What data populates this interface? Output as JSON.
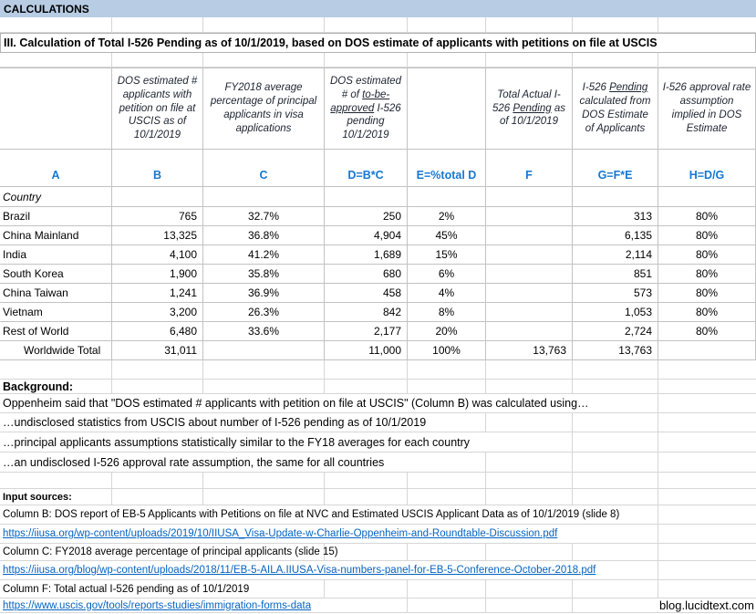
{
  "banner": {
    "label": "CALCULATIONS"
  },
  "title": "III. Calculation of Total I-526 Pending as of 10/1/2019, based on DOS estimate of applicants with petitions on file at USCIS",
  "table": {
    "col_headers": {
      "b": "DOS estimated # applicants with petition on file at USCIS as of 10/1/2019",
      "c": "FY2018 average percentage of principal applicants in visa applications",
      "d": {
        "pre": "DOS estimated # of ",
        "u": "to-be-approved",
        "post": " I-526 pending 10/1/2019"
      },
      "f": {
        "pre": "Total Actual I-526 ",
        "u": "Pending",
        "post": " as of 10/1/2019"
      },
      "g": {
        "pre": "I-526 ",
        "u": "Pending",
        "post": " calculated from DOS Estimate of Applicants"
      },
      "h": "I-526 approval rate assumption implied in DOS Estimate"
    },
    "col_letters": [
      "A",
      "B",
      "C",
      "D=B*C",
      "E=%total D",
      "F",
      "G=F*E",
      "H=D/G"
    ],
    "row_label_header": "Country",
    "rows": [
      {
        "country": "Brazil",
        "b": "765",
        "c": "32.7%",
        "d": "250",
        "e": "2%",
        "f": "",
        "g": "313",
        "h": "80%"
      },
      {
        "country": "China Mainland",
        "b": "13,325",
        "c": "36.8%",
        "d": "4,904",
        "e": "45%",
        "f": "",
        "g": "6,135",
        "h": "80%"
      },
      {
        "country": "India",
        "b": "4,100",
        "c": "41.2%",
        "d": "1,689",
        "e": "15%",
        "f": "",
        "g": "2,114",
        "h": "80%"
      },
      {
        "country": "South Korea",
        "b": "1,900",
        "c": "35.8%",
        "d": "680",
        "e": "6%",
        "f": "",
        "g": "851",
        "h": "80%"
      },
      {
        "country": "China Taiwan",
        "b": "1,241",
        "c": "36.9%",
        "d": "458",
        "e": "4%",
        "f": "",
        "g": "573",
        "h": "80%"
      },
      {
        "country": "Vietnam",
        "b": "3,200",
        "c": "26.3%",
        "d": "842",
        "e": "8%",
        "f": "",
        "g": "1,053",
        "h": "80%"
      },
      {
        "country": "Rest of World",
        "b": "6,480",
        "c": "33.6%",
        "d": "2,177",
        "e": "20%",
        "f": "",
        "g": "2,724",
        "h": "80%"
      },
      {
        "country": "Worldwide Total",
        "b": "31,011",
        "c": "",
        "d": "11,000",
        "e": "100%",
        "f": "13,763",
        "g": "13,763",
        "h": ""
      }
    ]
  },
  "background": {
    "label": "Background:",
    "line1": "Oppenheim said that \"DOS estimated # applicants with petition on file at USCIS\" (Column B) was calculated using…",
    "line2": "…undisclosed statistics from USCIS about number of I-526 pending as of 10/1/2019",
    "line3": "…principal applicants assumptions statistically similar to the FY18 averages for each country",
    "line4": "…an undisclosed I-526 approval rate assumption, the same for all countries"
  },
  "sources": {
    "label": "Input sources:",
    "item_b": "Column B: DOS report of EB-5 Applicants with Petitions on file at NVC and Estimated USCIS Applicant Data as of 10/1/2019 (slide 8)",
    "link_b": "https://iiusa.org/wp-content/uploads/2019/10/IIUSA_Visa-Update-w-Charlie-Oppenheim-and-Roundtable-Discussion.pdf",
    "item_c": "Column C: FY2018 average percentage of principal applicants (slide 15)",
    "link_c": "https://iiusa.org/blog/wp-content/uploads/2018/11/EB-5-AILA.IIUSA-Visa-numbers-panel-for-EB-5-Conference-October-2018.pdf",
    "item_f": "Column F: Total actual I-526 pending as of 10/1/2019",
    "link_f": "https://www.uscis.gov/tools/reports-studies/immigration-forms-data"
  },
  "footer": {
    "site": "blog.lucidtext.com"
  },
  "colors": {
    "banner_bg": "#b8cce4",
    "column_letter_blue": "#1778d2",
    "hyperlink_blue": "#0563c1",
    "gridline": "#c2c2c2"
  }
}
